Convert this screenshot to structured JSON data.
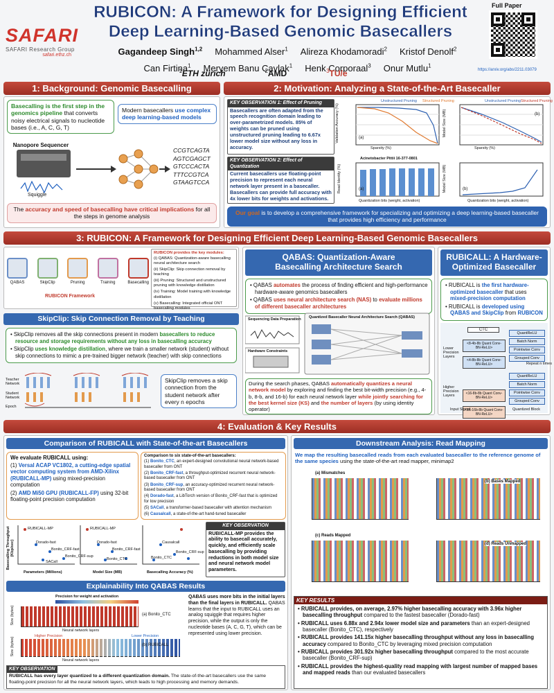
{
  "header": {
    "title": [
      "RUBICON: A Framework for Designing Efficient",
      "Deep Learning-Based Genomic Basecallers"
    ],
    "logo": "SAFARI",
    "logo_sub": "SAFARI Research Group",
    "logo_url": "safari.ethz.ch",
    "authors": [
      [
        {
          "name": "Gagandeep Singh",
          "sup": "1,2"
        },
        {
          "name": "Mohammed Alser",
          "sup": "1"
        },
        {
          "name": "Alireza Khodamoradi",
          "sup": "2"
        },
        {
          "name": "Kristof Denolf",
          "sup": "2"
        }
      ],
      [
        {
          "name": "Can Firtina",
          "sup": "1"
        },
        {
          "name": "Meryem Banu Cavlak",
          "sup": "1"
        },
        {
          "name": "Henk Corporaal",
          "sup": "3"
        },
        {
          "name": "Onur Mutlu",
          "sup": "1"
        }
      ]
    ],
    "affiliations": [
      {
        "sup": "1",
        "name": "ETH zürich"
      },
      {
        "sup": "2",
        "name": "AMD"
      },
      {
        "sup": "3",
        "name": "TU/e"
      }
    ],
    "full_paper": "Full Paper",
    "paper_url": "https://arxiv.org/abs/2211.03079"
  },
  "background": {
    "title": "1: Background: Genomic Basecalling",
    "intro": [
      "Basecalling is the first step in the genomics pipeline",
      " that converts noisy electrical signals to nucleotide bases (i.e., A, C, G, T)"
    ],
    "modern": [
      "Modern basecallers ",
      "use complex deep learning-based models"
    ],
    "sequencer": "Nanopore Sequencer",
    "squiggle": "Squiggle",
    "reads": [
      "CCGTCAGTA",
      "AGTCGAGCT",
      "GTCCCACTA",
      "TTTCCGTCA",
      "GTAAGTCCA"
    ],
    "impact": [
      "The ",
      "accuracy and speed of basecalling have critical implications",
      " for all the steps in genome analysis"
    ]
  },
  "motivation": {
    "title": "2: Motivation: Analyzing a State-of-the-Art Basecaller",
    "obs1": {
      "label": "KEY OBSERVATION 1: Effect of Pruning",
      "text": "Basecallers are often adapted from the speech recognition domain leading to over-parametrized models. 85% of weights can be pruned using unstructured pruning leading to 6.67x lower model size without any loss in accuracy."
    },
    "obs2": {
      "label": "KEY OBSERVATION 2: Effect of Quantization",
      "text": "Current basecallers use floating-point precision to represent each neural network layer present in a basecaller. Basecallers can provide full accuracy with 4x lower bits for weights and activations."
    },
    "legend": [
      "Unstructured Pruning",
      "Structured Pruning"
    ],
    "axes": {
      "accuracy": "Validation Accuracy (%)",
      "sparsity": "Sparsity (%)",
      "size": "Model Size (MB)",
      "identity": "Read Identity (%)",
      "bits": "Quantization bits (weight, activation)"
    },
    "species": "Acinetobacter Pittii 16-377-0801",
    "panels": [
      "(a)",
      "(b)"
    ],
    "goal": [
      "Our goal",
      " is to develop a comprehensive framework for specializing and optimizing a deep learning-based basecaller that provides high efficiency and performance"
    ]
  },
  "rubicon": {
    "title": "3: RUBICON: A Framework for Designing Efficient Deep Learning-Based Genomic Basecallers",
    "steps": [
      "QABAS",
      "SkipClip",
      "Pruning",
      "Training",
      "Basecalling"
    ],
    "framework": "RUBICON Framework",
    "modules_intro": "RUBICON provides the key modules:",
    "modules": [
      "(i) QABAS: Quantization-aware basecalling neural architecture search",
      "(ii) SkipClip: Skip connection removal by teaching",
      "(iii) Pruning: Structured and unstructured pruning with knowledge distillation",
      "(iv) Training: Model training with knowledge distillation",
      "(v) Basecalling: Integrated official ONT basecalling modules"
    ],
    "skipclip": {
      "title": "SkipClip: Skip Connection Removal by Teaching",
      "bullets": [
        [
          "SkipClip removes all the skip connections present in modern ",
          "basecallers to reduce resource and storage requirements without any loss in basecalling accuracy"
        ],
        [
          "SkipClip ",
          "uses knowledge distillation",
          ", where we train a smaller network (student) without skip connections to mimic a pre-trained bigger network (teacher) with skip connections"
        ]
      ],
      "teacher": "Teacher Network",
      "student": "Student Network",
      "epoch": "Epoch",
      "note": "SkipClip removes a skip connection from the student network after every n epochs"
    },
    "qabas": {
      "title": "QABAS: Quantization-Aware Basecalling Architecture Search",
      "bullets": [
        [
          "QABAS ",
          "automates",
          " the process of finding efficient and high-performance hardware-aware genomics basecallers"
        ],
        [
          "QABAS ",
          "uses neural architecture search (NAS)",
          " to ",
          "evaluate millions of different basecaller architectures"
        ]
      ],
      "data_prep": "Sequencing Data Preparation",
      "hw": "Hardware Constraints",
      "search": "Quantized Basecaller Neural Architecture Search (QABAS)",
      "text": [
        "During the search phases, QABAS ",
        "automatically quantizes a neural network model",
        " by exploring and finding the best bit-width precision (e.g., 4-b, 8-b, and 16-b) for each neural network layer ",
        "while jointly searching for the best kernel size (KS)",
        " and ",
        "the number of layers",
        " (by using identity operator)"
      ]
    },
    "rubicall": {
      "title": "RUBICALL: A Hardware-Optimized Basecaller",
      "bullets": [
        [
          "RUBICALL is ",
          "the first hardware-optimized basecaller",
          " that uses ",
          "mixed-precision computation"
        ],
        [
          "RUBICALL is ",
          "developed using QABAS and SkipClip",
          " from ",
          "RUBICON"
        ]
      ],
      "ctc": "CTC",
      "lower": "Lower Precision Layers",
      "higher": "Higher Precision Layers",
      "input": "Input Signal",
      "block": "Quantized Block",
      "repeat": "Repeat n times",
      "layers": [
        "<8-4b-8b Quant Conv-BN-ReLU>",
        "<4-8b-8b Quant Conv-BN-ReLU>",
        "<16-8b-8b Quant Conv-BN-ReLU>",
        "<16-16b-8b Quant Conv-BN-ReLU>"
      ],
      "block_parts": [
        "QuantReLU",
        "Batch Norm",
        "Pointwise Conv",
        "Grouped Conv"
      ]
    }
  },
  "evaluation": {
    "title": "4: Evaluation & Key Results",
    "comparison": {
      "title": "Comparison of RUBICALL with State-of-the-art Basecallers",
      "eval_head": "We evaluate RUBICALL using:",
      "eval": [
        [
          "(1) ",
          "Versal ACAP VC1802, a cutting-edge spatial vector computing system from AMD-Xilinx (RUBICALL-MP)",
          " using mixed-precision computation"
        ],
        [
          "(2) ",
          "AMD Mi50 GPU (RUBICALL-FP)",
          " using 32-bit floating-point precision computation"
        ]
      ],
      "cmp_head": "Comparison to six state-of-the-art basecallers:",
      "cmp": [
        [
          "(1) ",
          "Bonito_CTC",
          ", an expert-designed convolutional neural network-based basecaller from ONT"
        ],
        [
          "(2) ",
          "Bonito_CRF-fast",
          ", a throughput-optimized recurrent neural network-based basecaller from ONT"
        ],
        [
          "(3) ",
          "Bonito_CRF-sup",
          ", an accuracy-optimized recurrent neural network-based basecaller from ONT"
        ],
        [
          "(4) ",
          "Dorado-fast",
          ", a LibTorch version of Bonito_CRF-fast that is optimized for low precision"
        ],
        [
          "(5) ",
          "SACall",
          ", a transformer-based basecaller with attention mechanism"
        ],
        [
          "(6) ",
          "Causalcall",
          ", a state-of-the-art hand-tuned basecaller"
        ]
      ],
      "y_axis": "Basecalling Throughput (Kbp/sec)",
      "x_axes": [
        "Parameters (Millions)",
        "Model Size (MB)",
        "Basecalling Accuracy (%)"
      ],
      "points": [
        "RUBICALL-MP",
        "RUBICALL-FP",
        "Dorado-fast",
        "Bonito_CRF-fast",
        "Bonito_CRF-sup",
        "SACall",
        "Causalcall",
        "Bonito_CTC"
      ],
      "obs_label": "KEY OBSERVATION",
      "obs": "RUBICALL-MP provides the ability to basecall accurately, quickly, and efficiently scale basecalling by providing reductions in both model size and neural network model parameters."
    },
    "downstream": {
      "title": "Downstream Analysis: Read Mapping",
      "text": [
        "We map the resulting basecalled reads from each evaluated basecaller to the reference genome of the same species",
        " using the state-of-the-art read mapper, minimap2"
      ],
      "panels": [
        "(a) Mismatches",
        "(b) Bases Mapped",
        "(c) Reads Mapped",
        "(d) Reads Unmapped"
      ]
    },
    "explain": {
      "title": "Explainability Into QABAS Results",
      "precision": "Precision for weight and activation",
      "higher": "Higher Precision",
      "lower": "Lower Precision",
      "size": "Size (bytes)",
      "layers": "Neural network layers",
      "panels": [
        "(a) Bonito_CTC",
        "(b) RUBICALL"
      ],
      "text": [
        "QABAS uses more bits in the initial layers than the final layers in RUBICALL.",
        " QABAS learns that the input to RUBICALL uses an analog squiggle that requires higher precision, while the output is only the nucleotide bases (A, C, G, T), which can be represented using lower precision."
      ],
      "obs_label": "KEY OBSERVATION",
      "obs": [
        "RUBICALL has every layer quantized to a different quantization domain.",
        " The state-of-the-art basecallers use the same floating-point precision for all the neural network layers, which leads to high processing and memory demands."
      ]
    },
    "results": {
      "label": "KEY RESULTS",
      "items": [
        [
          "RUBICALL provides, on average, 2.97% higher basecalling accuracy with 3.96x higher basecalling throughput",
          " compared to the fastest basecaller (Dorado-fast)"
        ],
        [
          "RUBICALL uses 6.88x and 2.94x lower model size and parameters",
          " than an expert-designed basecaller (Bonito_CTC), respectively"
        ],
        [
          "RUBICALL provides 141.15x higher basecalling throughput without any loss in basecalling accuracy",
          " compared to Bonito_CTC by leveraging mixed precision computation"
        ],
        [
          "RUBICALL provides 301.92x higher basecalling throughput",
          " compared to the most accurate basecaller (Bonito_CRF-sup)"
        ],
        [
          "RUBICALL provides the highest-quality read mapping with largest number of mapped bases and mapped reads",
          " than our evaluated basecallers"
        ]
      ]
    }
  }
}
